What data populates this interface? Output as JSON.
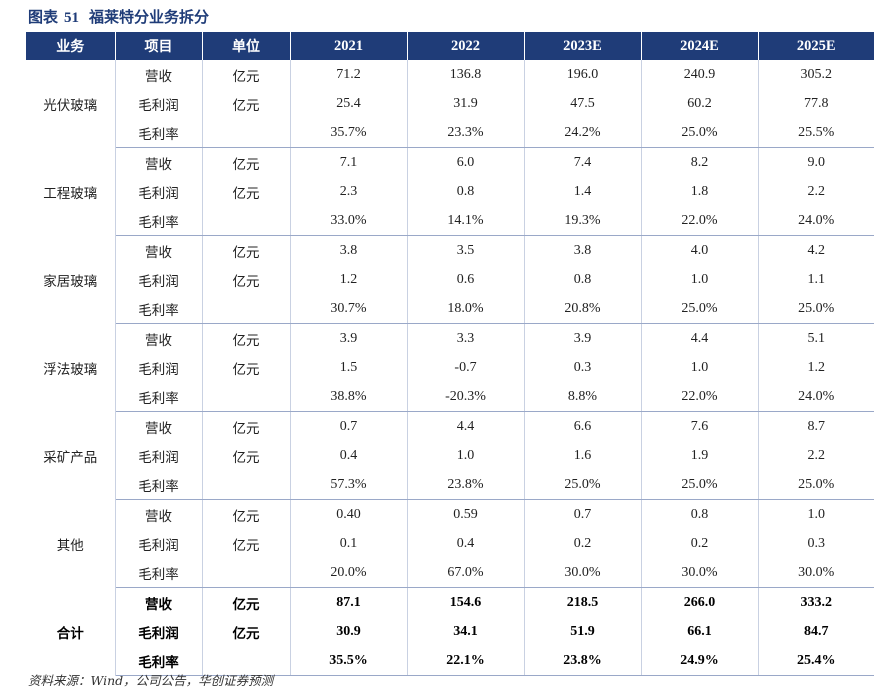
{
  "figure": {
    "label": "图表",
    "number": "51",
    "title": "福莱特分业务拆分"
  },
  "headers": [
    "业务",
    "项目",
    "单位",
    "2021",
    "2022",
    "2023E",
    "2024E",
    "2025E"
  ],
  "groups": [
    {
      "name": "光伏玻璃",
      "rows": [
        {
          "item": "营收",
          "unit": "亿元",
          "values": [
            "71.2",
            "136.8",
            "196.0",
            "240.9",
            "305.2"
          ]
        },
        {
          "item": "毛利润",
          "unit": "亿元",
          "values": [
            "25.4",
            "31.9",
            "47.5",
            "60.2",
            "77.8"
          ]
        },
        {
          "item": "毛利率",
          "unit": "",
          "values": [
            "35.7%",
            "23.3%",
            "24.2%",
            "25.0%",
            "25.5%"
          ]
        }
      ]
    },
    {
      "name": "工程玻璃",
      "rows": [
        {
          "item": "营收",
          "unit": "亿元",
          "values": [
            "7.1",
            "6.0",
            "7.4",
            "8.2",
            "9.0"
          ]
        },
        {
          "item": "毛利润",
          "unit": "亿元",
          "values": [
            "2.3",
            "0.8",
            "1.4",
            "1.8",
            "2.2"
          ]
        },
        {
          "item": "毛利率",
          "unit": "",
          "values": [
            "33.0%",
            "14.1%",
            "19.3%",
            "22.0%",
            "24.0%"
          ]
        }
      ]
    },
    {
      "name": "家居玻璃",
      "rows": [
        {
          "item": "营收",
          "unit": "亿元",
          "values": [
            "3.8",
            "3.5",
            "3.8",
            "4.0",
            "4.2"
          ]
        },
        {
          "item": "毛利润",
          "unit": "亿元",
          "values": [
            "1.2",
            "0.6",
            "0.8",
            "1.0",
            "1.1"
          ]
        },
        {
          "item": "毛利率",
          "unit": "",
          "values": [
            "30.7%",
            "18.0%",
            "20.8%",
            "25.0%",
            "25.0%"
          ]
        }
      ]
    },
    {
      "name": "浮法玻璃",
      "rows": [
        {
          "item": "营收",
          "unit": "亿元",
          "values": [
            "3.9",
            "3.3",
            "3.9",
            "4.4",
            "5.1"
          ]
        },
        {
          "item": "毛利润",
          "unit": "亿元",
          "values": [
            "1.5",
            "-0.7",
            "0.3",
            "1.0",
            "1.2"
          ]
        },
        {
          "item": "毛利率",
          "unit": "",
          "values": [
            "38.8%",
            "-20.3%",
            "8.8%",
            "22.0%",
            "24.0%"
          ]
        }
      ]
    },
    {
      "name": "采矿产品",
      "rows": [
        {
          "item": "营收",
          "unit": "亿元",
          "values": [
            "0.7",
            "4.4",
            "6.6",
            "7.6",
            "8.7"
          ]
        },
        {
          "item": "毛利润",
          "unit": "亿元",
          "values": [
            "0.4",
            "1.0",
            "1.6",
            "1.9",
            "2.2"
          ]
        },
        {
          "item": "毛利率",
          "unit": "",
          "values": [
            "57.3%",
            "23.8%",
            "25.0%",
            "25.0%",
            "25.0%"
          ]
        }
      ]
    },
    {
      "name": "其他",
      "rows": [
        {
          "item": "营收",
          "unit": "亿元",
          "values": [
            "0.40",
            "0.59",
            "0.7",
            "0.8",
            "1.0"
          ]
        },
        {
          "item": "毛利润",
          "unit": "亿元",
          "values": [
            "0.1",
            "0.4",
            "0.2",
            "0.2",
            "0.3"
          ]
        },
        {
          "item": "毛利率",
          "unit": "",
          "values": [
            "20.0%",
            "67.0%",
            "30.0%",
            "30.0%",
            "30.0%"
          ]
        }
      ]
    },
    {
      "name": "合计",
      "total": true,
      "rows": [
        {
          "item": "营收",
          "unit": "亿元",
          "values": [
            "87.1",
            "154.6",
            "218.5",
            "266.0",
            "333.2"
          ]
        },
        {
          "item": "毛利润",
          "unit": "亿元",
          "values": [
            "30.9",
            "34.1",
            "51.9",
            "66.1",
            "84.7"
          ]
        },
        {
          "item": "毛利率",
          "unit": "",
          "values": [
            "35.5%",
            "22.1%",
            "23.8%",
            "24.9%",
            "25.4%"
          ]
        }
      ]
    }
  ],
  "source": "资料来源：Wind，公司公告，华创证券预测",
  "colors": {
    "header_bg": "#1f3c78",
    "header_text": "#ffffff",
    "title": "#1f3c78"
  }
}
